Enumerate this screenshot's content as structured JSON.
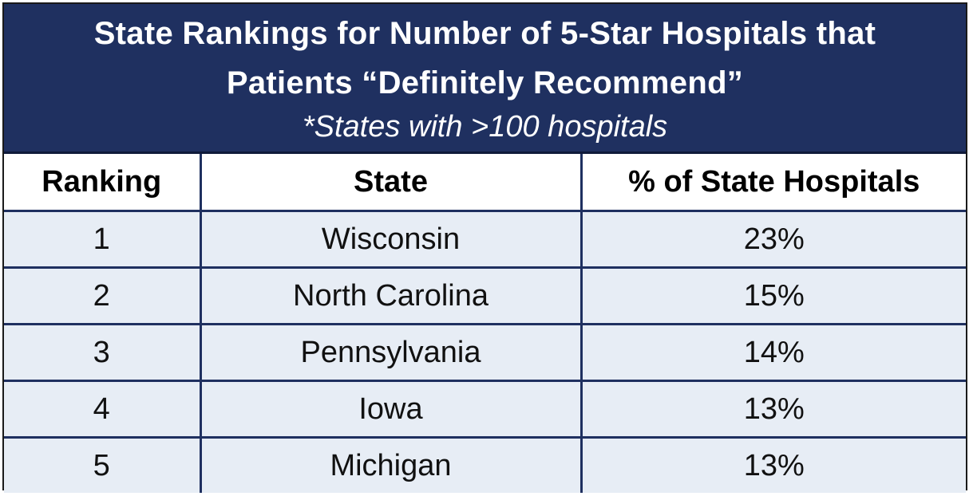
{
  "title": {
    "line1": "State Rankings for Number of 5-Star Hospitals that",
    "line2": "Patients “Definitely Recommend”",
    "subtitle": "*States with >100 hospitals"
  },
  "table": {
    "headers": [
      "Ranking",
      "State",
      "% of State Hospitals"
    ],
    "rows": [
      {
        "ranking": "1",
        "state": "Wisconsin",
        "percent": "23%"
      },
      {
        "ranking": "2",
        "state": "North Carolina",
        "percent": "15%"
      },
      {
        "ranking": "3",
        "state": "Pennsylvania",
        "percent": "14%"
      },
      {
        "ranking": "4",
        "state": "Iowa",
        "percent": "13%"
      },
      {
        "ranking": "5",
        "state": "Michigan",
        "percent": "13%"
      }
    ]
  },
  "colors": {
    "header_background": "#1f3060",
    "row_background": "#e7edf5",
    "grid_lines": "#1f3060"
  }
}
